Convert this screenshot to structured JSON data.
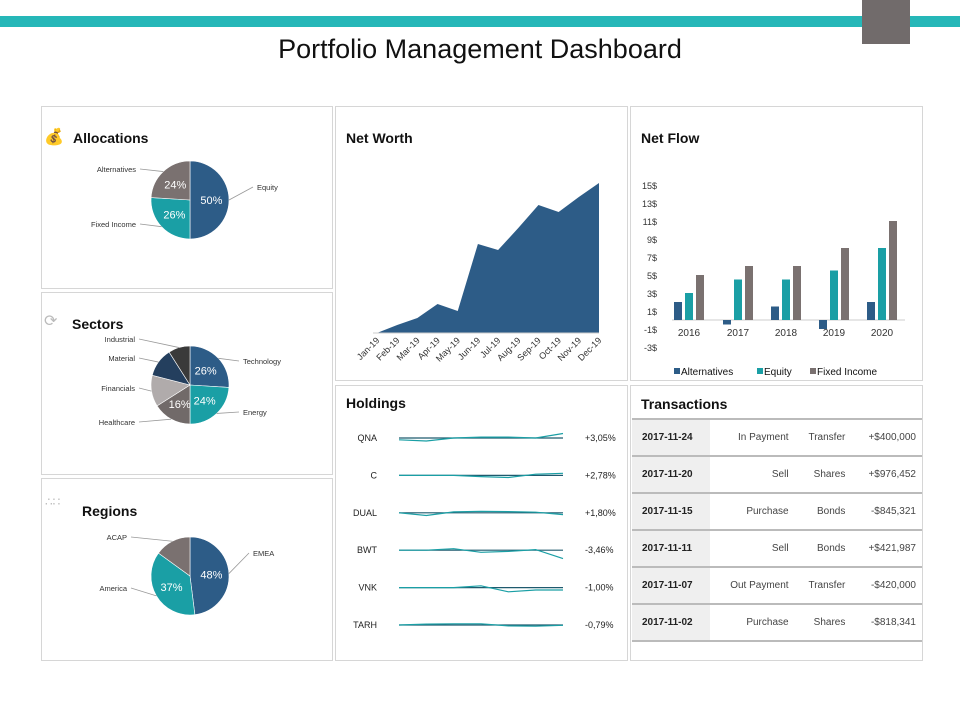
{
  "header": {
    "title": "Portfolio Management Dashboard"
  },
  "colors": {
    "navy": "#2d5c87",
    "teal": "#1a9fa5",
    "gray": "#7a7170",
    "accent": "#26b7b8",
    "dark": "#3a3a3a",
    "light_gray": "#b0abab",
    "dark_navy": "#243f5e",
    "corner": "#716b6b"
  },
  "allocations": {
    "title": "Allocations",
    "icon": "money-hand-icon",
    "slices": [
      {
        "label": "Equity",
        "value": 50,
        "text": "50%",
        "color": "#2d5c87"
      },
      {
        "label": "Fixed Income",
        "value": 26,
        "text": "26%",
        "color": "#1a9fa5"
      },
      {
        "label": "Alternatives",
        "value": 24,
        "text": "24%",
        "color": "#7a7170"
      }
    ]
  },
  "sectors": {
    "title": "Sectors",
    "icon": "cycle-coins-icon",
    "slices": [
      {
        "label": "Technology",
        "value": 26,
        "text": "26%",
        "color": "#2d5c87"
      },
      {
        "label": "Energy",
        "value": 24,
        "text": "24%",
        "color": "#1a9fa5"
      },
      {
        "label": "Healthcare",
        "value": 16,
        "text": "16%",
        "color": "#716a69"
      },
      {
        "label": "Financials",
        "value": 13,
        "text": "",
        "color": "#b0abab"
      },
      {
        "label": "Material",
        "value": 12,
        "text": "",
        "color": "#243f5e"
      },
      {
        "label": "Industrial",
        "value": 9,
        "text": "",
        "color": "#3a3a3a"
      }
    ]
  },
  "regions": {
    "title": "Regions",
    "icon": "world-map-icon",
    "slices": [
      {
        "label": "EMEA",
        "value": 48,
        "text": "48%",
        "color": "#2d5c87"
      },
      {
        "label": "America",
        "value": 37,
        "text": "37%",
        "color": "#1a9fa5"
      },
      {
        "label": "ACAP",
        "value": 15,
        "text": "",
        "color": "#7a7170"
      }
    ]
  },
  "net_worth": {
    "title": "Net Worth",
    "chart_data": {
      "type": "area",
      "categories": [
        "Jan-19",
        "Feb-19",
        "Mar-19",
        "Apr-19",
        "May-19",
        "Jun-19",
        "Jul-19",
        "Aug-19",
        "Sep-19",
        "Oct-19",
        "Nov-19",
        "Dec-19"
      ],
      "values": [
        0,
        0.8,
        1.5,
        2.9,
        2.2,
        8.9,
        8.3,
        10.5,
        12.8,
        12.1,
        13.6,
        15.0
      ],
      "color": "#2d5c87"
    }
  },
  "net_flow": {
    "title": "Net Flow",
    "chart_data": {
      "type": "bar",
      "categories": [
        "2016",
        "2017",
        "2018",
        "2019",
        "2020"
      ],
      "ylim": [
        -3,
        15
      ],
      "yticks": [
        "15$",
        "13$",
        "11$",
        "9$",
        "7$",
        "5$",
        "3$",
        "1$",
        "-1$",
        "-3$"
      ],
      "ytick_values": [
        15,
        13,
        11,
        9,
        7,
        5,
        3,
        1,
        -1,
        -3
      ],
      "legend": "bottom",
      "series": [
        {
          "name": "Alternatives",
          "color": "#2d5c87",
          "values": [
            2,
            -0.5,
            1.5,
            -1,
            2
          ]
        },
        {
          "name": "Equity",
          "color": "#1a9fa5",
          "values": [
            3,
            4.5,
            4.5,
            5.5,
            8
          ]
        },
        {
          "name": "Fixed Income",
          "color": "#7a7170",
          "values": [
            5,
            6,
            6,
            8,
            11
          ]
        }
      ]
    }
  },
  "holdings": {
    "title": "Holdings",
    "items": [
      {
        "ticker": "QNA",
        "change": "+3,05%",
        "trend": [
          -0.6,
          -1,
          0,
          0.3,
          0.3,
          0,
          1.5
        ]
      },
      {
        "ticker": "C",
        "change": "+2,78%",
        "trend": [
          0,
          0,
          0,
          -0.4,
          -0.7,
          0.4,
          0.7
        ]
      },
      {
        "ticker": "DUAL",
        "change": "+1,80%",
        "trend": [
          0,
          -0.9,
          0.3,
          0.5,
          0.4,
          0.2,
          -0.6
        ]
      },
      {
        "ticker": "BWT",
        "change": "-3,46%",
        "trend": [
          0,
          0,
          0.5,
          -0.7,
          -0.4,
          0.2,
          -2.8
        ]
      },
      {
        "ticker": "VNK",
        "change": "-1,00%",
        "trend": [
          0,
          0,
          0,
          0.6,
          -1.4,
          -0.8,
          -0.8
        ]
      },
      {
        "ticker": "TARH",
        "change": "-0,79%",
        "trend": [
          0,
          0.3,
          0.4,
          0.4,
          -0.3,
          -0.4,
          -0.1
        ]
      }
    ]
  },
  "transactions": {
    "title": "Transactions",
    "rows": [
      {
        "date": "2017-11-24",
        "type": "In Payment",
        "asset": "Transfer",
        "amount": "+$400,000"
      },
      {
        "date": "2017-11-20",
        "type": "Sell",
        "asset": "Shares",
        "amount": "+$976,452"
      },
      {
        "date": "2017-11-15",
        "type": "Purchase",
        "asset": "Bonds",
        "amount": "-$845,321"
      },
      {
        "date": "2017-11-11",
        "type": "Sell",
        "asset": "Bonds",
        "amount": "+$421,987"
      },
      {
        "date": "2017-11-07",
        "type": "Out Payment",
        "asset": "Transfer",
        "amount": "-$420,000"
      },
      {
        "date": "2017-11-02",
        "type": "Purchase",
        "asset": "Shares",
        "amount": "-$818,341"
      }
    ]
  }
}
